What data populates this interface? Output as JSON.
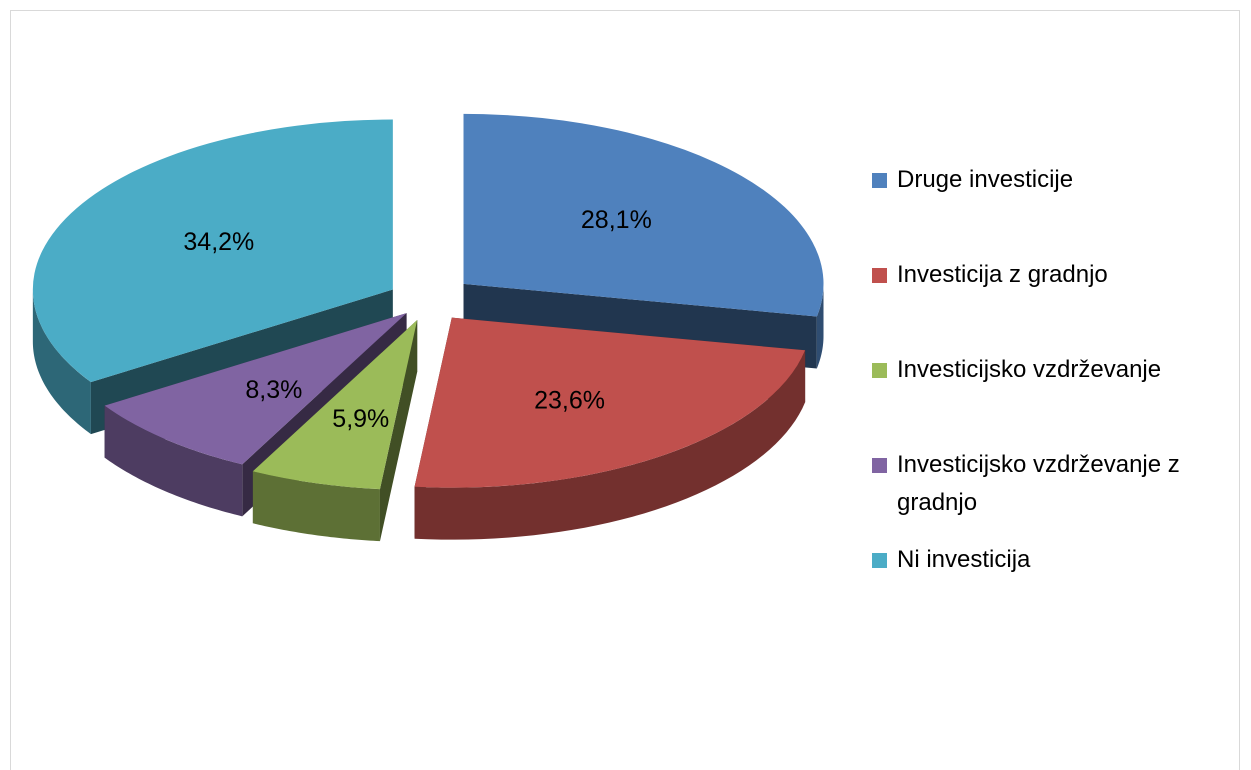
{
  "chart_data": {
    "type": "pie",
    "three_d": true,
    "exploded": true,
    "legend_position": "right",
    "title": "",
    "categories": [
      "Druge investicije",
      "Investicija z gradnjo",
      "Investicijsko vzdrževanje",
      "Investicijsko vzdrževanje z gradnjo",
      "Ni investicija"
    ],
    "values": [
      28.1,
      23.6,
      5.9,
      8.3,
      34.2
    ],
    "value_labels": [
      "28,1%",
      "23,6%",
      "5,9%",
      "8,3%",
      "34,2%"
    ],
    "colors": [
      "#4f81bd",
      "#c0504d",
      "#9bbb59",
      "#8064a2",
      "#4bacc6"
    ]
  },
  "legend": {
    "items": [
      {
        "label": "Druge investicije",
        "color": "#4f81bd"
      },
      {
        "label": "Investicija z gradnjo",
        "color": "#c0504d"
      },
      {
        "label": "Investicijsko vzdrževanje",
        "color": "#9bbb59"
      },
      {
        "label": "Investicijsko vzdrževanje z",
        "label2": "gradnjo",
        "color": "#8064a2"
      },
      {
        "label": "Ni investicija",
        "color": "#4bacc6"
      }
    ]
  }
}
